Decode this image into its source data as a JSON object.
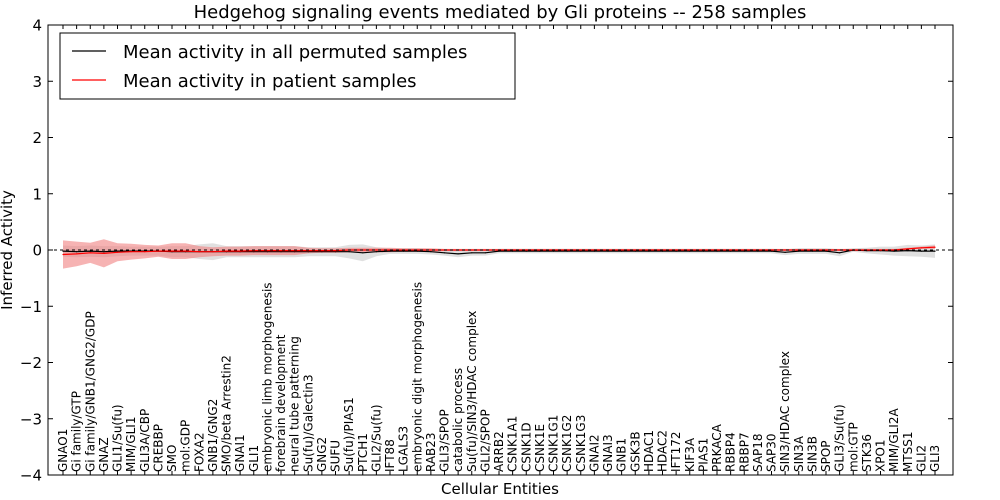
{
  "chart_data": {
    "type": "line",
    "title": "Hedgehog signaling events mediated by Gli proteins -- 258 samples",
    "xlabel": "Cellular Entities",
    "ylabel": "Inferred Activity",
    "ylim": [
      -4,
      4
    ],
    "yticks": [
      4,
      3,
      2,
      1,
      0,
      -1,
      -2,
      -3,
      -4
    ],
    "ytick_labels": [
      "4",
      "3",
      "2",
      "1",
      "0",
      "−1",
      "−2",
      "−3",
      "−4"
    ],
    "legend": {
      "placement": "top-left",
      "entries": [
        "Mean activity in all permuted samples",
        "Mean activity in patient samples"
      ]
    },
    "categories": [
      "GNAO1",
      "Gi family/GTP",
      "Gi family/GNB1/GNG2/GDP",
      "GNAZ",
      "GLI1/Su(fu)",
      "MIM/GLI1",
      "GLI3A/CBP",
      "CREBBP",
      "SMO",
      "mol:GDP",
      "FOXA2",
      "GNB1/GNG2",
      "SMO/beta Arrestin2",
      "GNAI1",
      "GLI1",
      "embryonic limb morphogenesis",
      "forebrain development",
      "neural tube patterning",
      "Su(fu)/Galectin3",
      "GNG2",
      "SUFU",
      "Su(fu)/PIAS1",
      "PTCH1",
      "GLI2/Su(fu)",
      "IFT88",
      "LGALS3",
      "embryonic digit morphogenesis",
      "RAB23",
      "GLI3/SPOP",
      "catabolic process",
      "Su(fu)/SIN3/HDAC complex",
      "GLI2/SPOP",
      "ARRB2",
      "CSNK1A1",
      "CSNK1D",
      "CSNK1E",
      "CSNK1G1",
      "CSNK1G2",
      "CSNK1G3",
      "GNAI2",
      "GNAI3",
      "GNB1",
      "GSK3B",
      "HDAC1",
      "HDAC2",
      "IFT172",
      "KIF3A",
      "PIAS1",
      "PRKACA",
      "RBBP4",
      "RBBP7",
      "SAP18",
      "SAP30",
      "SIN3/HDAC complex",
      "SIN3A",
      "SIN3B",
      "SPOP",
      "GLI3/Su(fu)",
      "mol:GTP",
      "STK36",
      "XPO1",
      "MIM/GLI2A",
      "MTSS1",
      "GLI2",
      "GLI3"
    ],
    "series": [
      {
        "name": "Mean activity in all permuted samples",
        "color": "#000000",
        "values": [
          -0.02,
          -0.03,
          -0.02,
          -0.03,
          -0.02,
          -0.02,
          -0.02,
          -0.02,
          -0.03,
          -0.03,
          -0.03,
          -0.03,
          -0.03,
          -0.03,
          -0.03,
          -0.03,
          -0.03,
          -0.03,
          -0.03,
          -0.03,
          -0.03,
          -0.03,
          -0.05,
          -0.03,
          -0.02,
          -0.02,
          -0.02,
          -0.03,
          -0.05,
          -0.07,
          -0.05,
          -0.05,
          -0.02,
          -0.02,
          -0.02,
          -0.02,
          -0.02,
          -0.02,
          -0.02,
          -0.02,
          -0.02,
          -0.02,
          -0.02,
          -0.02,
          -0.02,
          -0.02,
          -0.02,
          -0.02,
          -0.02,
          -0.02,
          -0.02,
          -0.02,
          -0.02,
          -0.04,
          -0.02,
          -0.02,
          -0.02,
          -0.05,
          0.0,
          -0.01,
          -0.01,
          -0.02,
          -0.01,
          -0.02,
          -0.02
        ],
        "band": [
          0.1,
          0.1,
          0.1,
          0.1,
          0.09,
          0.08,
          0.08,
          0.08,
          0.1,
          0.1,
          0.13,
          0.15,
          0.1,
          0.1,
          0.1,
          0.1,
          0.1,
          0.1,
          0.08,
          0.08,
          0.08,
          0.12,
          0.15,
          0.08,
          0.05,
          0.05,
          0.05,
          0.05,
          0.05,
          0.06,
          0.05,
          0.05,
          0.04,
          0.04,
          0.04,
          0.04,
          0.04,
          0.04,
          0.04,
          0.04,
          0.04,
          0.04,
          0.04,
          0.04,
          0.04,
          0.04,
          0.04,
          0.04,
          0.04,
          0.04,
          0.04,
          0.04,
          0.04,
          0.05,
          0.05,
          0.05,
          0.05,
          0.06,
          0.03,
          0.05,
          0.07,
          0.08,
          0.1,
          0.1,
          0.12
        ]
      },
      {
        "name": "Mean activity in patient samples",
        "color": "#ff0000",
        "values": [
          -0.08,
          -0.07,
          -0.05,
          -0.06,
          -0.04,
          -0.03,
          -0.03,
          -0.02,
          -0.02,
          -0.02,
          -0.03,
          -0.03,
          -0.02,
          -0.02,
          -0.01,
          -0.01,
          -0.01,
          -0.01,
          -0.01,
          -0.01,
          -0.01,
          0.0,
          0.0,
          0.0,
          0.0,
          0.0,
          0.0,
          0.0,
          0.0,
          0.0,
          0.0,
          0.0,
          0.0,
          0.0,
          0.0,
          0.0,
          0.0,
          0.0,
          0.0,
          0.0,
          0.0,
          0.0,
          0.0,
          0.0,
          0.0,
          0.0,
          0.0,
          0.0,
          0.0,
          0.0,
          0.0,
          0.0,
          0.0,
          0.0,
          0.0,
          0.0,
          0.0,
          0.0,
          0.0,
          0.0,
          0.0,
          0.0,
          0.02,
          0.04,
          0.05
        ],
        "band": [
          0.25,
          0.22,
          0.18,
          0.25,
          0.16,
          0.14,
          0.12,
          0.1,
          0.14,
          0.14,
          0.1,
          0.08,
          0.08,
          0.08,
          0.08,
          0.08,
          0.08,
          0.08,
          0.05,
          0.04,
          0.04,
          0.04,
          0.04,
          0.04,
          0.04,
          0.03,
          0.03,
          0.03,
          0.02,
          0.02,
          0.02,
          0.02,
          0.02,
          0.02,
          0.02,
          0.02,
          0.02,
          0.02,
          0.02,
          0.02,
          0.02,
          0.02,
          0.02,
          0.02,
          0.02,
          0.02,
          0.02,
          0.02,
          0.02,
          0.02,
          0.02,
          0.02,
          0.02,
          0.02,
          0.02,
          0.02,
          0.02,
          0.02,
          0.02,
          0.02,
          0.02,
          0.02,
          0.02,
          0.02,
          0.03
        ]
      }
    ]
  }
}
